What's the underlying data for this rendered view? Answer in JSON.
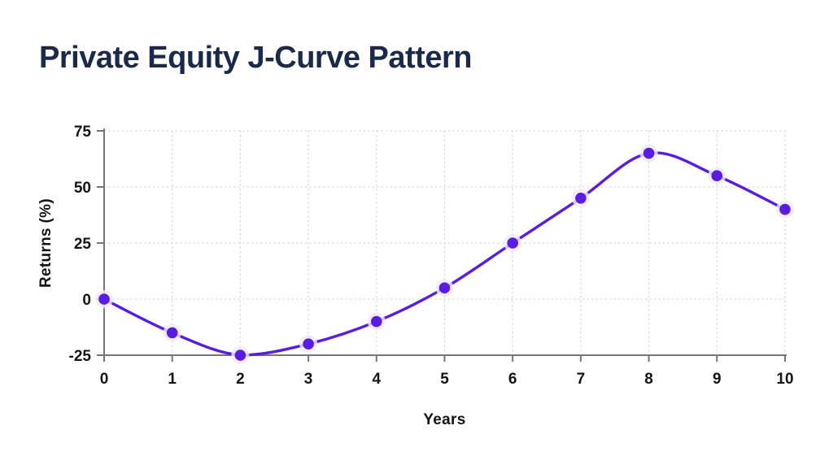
{
  "page": {
    "background": "#ffffff"
  },
  "title": "Private Equity J-Curve Pattern",
  "title_color": "#1B2A4A",
  "chart_data": {
    "type": "line",
    "title": "Private Equity J-Curve Pattern",
    "xlabel": "Years",
    "ylabel": "Returns (%)",
    "x": [
      0,
      1,
      2,
      3,
      4,
      5,
      6,
      7,
      8,
      9,
      10
    ],
    "series": [
      {
        "name": "Returns (%)",
        "values": [
          0,
          -15,
          -25,
          -20,
          -10,
          5,
          25,
          45,
          65,
          55,
          40
        ]
      }
    ],
    "xlim": [
      0,
      10
    ],
    "ylim": [
      -25,
      75
    ],
    "xticks": [
      0,
      1,
      2,
      3,
      4,
      5,
      6,
      7,
      8,
      9,
      10
    ],
    "yticks": [
      -25,
      0,
      25,
      50,
      75
    ],
    "grid": true,
    "grid_style": "dotted",
    "grid_color": "#dadada",
    "axis_color": "#767676",
    "tick_label_color": "#141414",
    "line_color": "#5A1CE0",
    "marker_color": "#5A1CE0",
    "marker_shape": "circle",
    "smooth": true,
    "legend": "none"
  }
}
